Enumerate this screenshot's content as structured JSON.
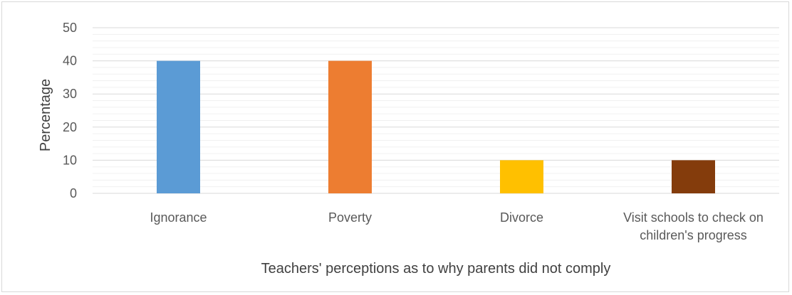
{
  "chart_data": {
    "type": "bar",
    "categories": [
      [
        "Ignorance"
      ],
      [
        "Poverty"
      ],
      [
        "Divorce"
      ],
      [
        "Visit schools to check on",
        "children's progress"
      ]
    ],
    "values": [
      40,
      40,
      10,
      10
    ],
    "colors": [
      "#5b9bd5",
      "#ed7d31",
      "#ffc000",
      "#843c0c"
    ],
    "xlabel": "Teachers' perceptions as to why parents did not comply",
    "ylabel": "Percentage",
    "ylim": [
      0,
      50
    ],
    "yticks": [
      0,
      10,
      20,
      30,
      40,
      50
    ],
    "grid": true
  }
}
